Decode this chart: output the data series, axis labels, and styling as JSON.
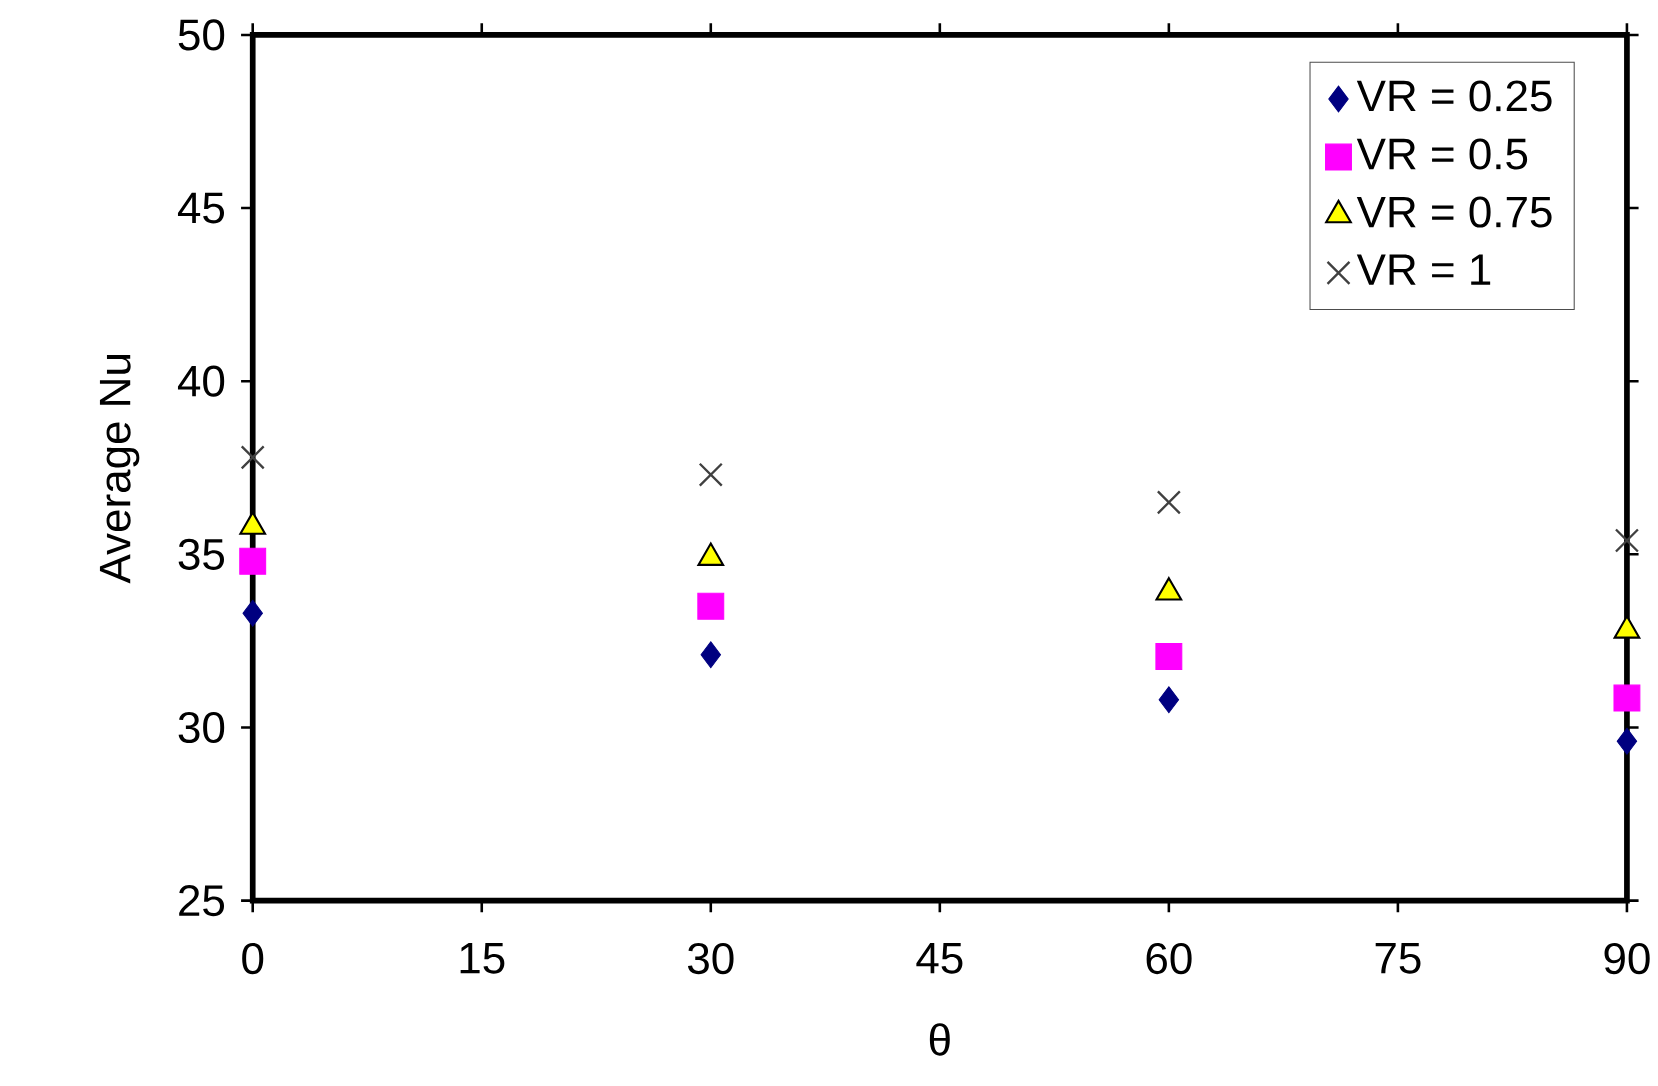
{
  "chart_data": {
    "type": "scatter",
    "xlabel": "θ",
    "ylabel": "Average Nu",
    "x": [
      0,
      30,
      60,
      90
    ],
    "xlim": [
      0,
      90
    ],
    "xticks": [
      0,
      15,
      30,
      45,
      60,
      75,
      90
    ],
    "ylim": [
      25,
      50
    ],
    "yticks": [
      25,
      30,
      35,
      40,
      45,
      50
    ],
    "grid": false,
    "legend": "top right",
    "series": [
      {
        "name": "VR = 0.25",
        "color": "#000080",
        "marker": "diamond",
        "values": [
          33.3,
          32.1,
          30.8,
          29.6
        ]
      },
      {
        "name": "VR = 0.5",
        "color": "#ff00ff",
        "marker": "square",
        "values": [
          34.8,
          33.5,
          32.05,
          30.85
        ]
      },
      {
        "name": "VR = 0.75",
        "color": "#ffff00",
        "marker": "triangle",
        "values": [
          35.8,
          34.9,
          33.9,
          32.8
        ]
      },
      {
        "name": "VR = 1",
        "color": "#404040",
        "marker": "cross",
        "values": [
          37.8,
          37.3,
          36.5,
          35.4
        ]
      }
    ]
  }
}
